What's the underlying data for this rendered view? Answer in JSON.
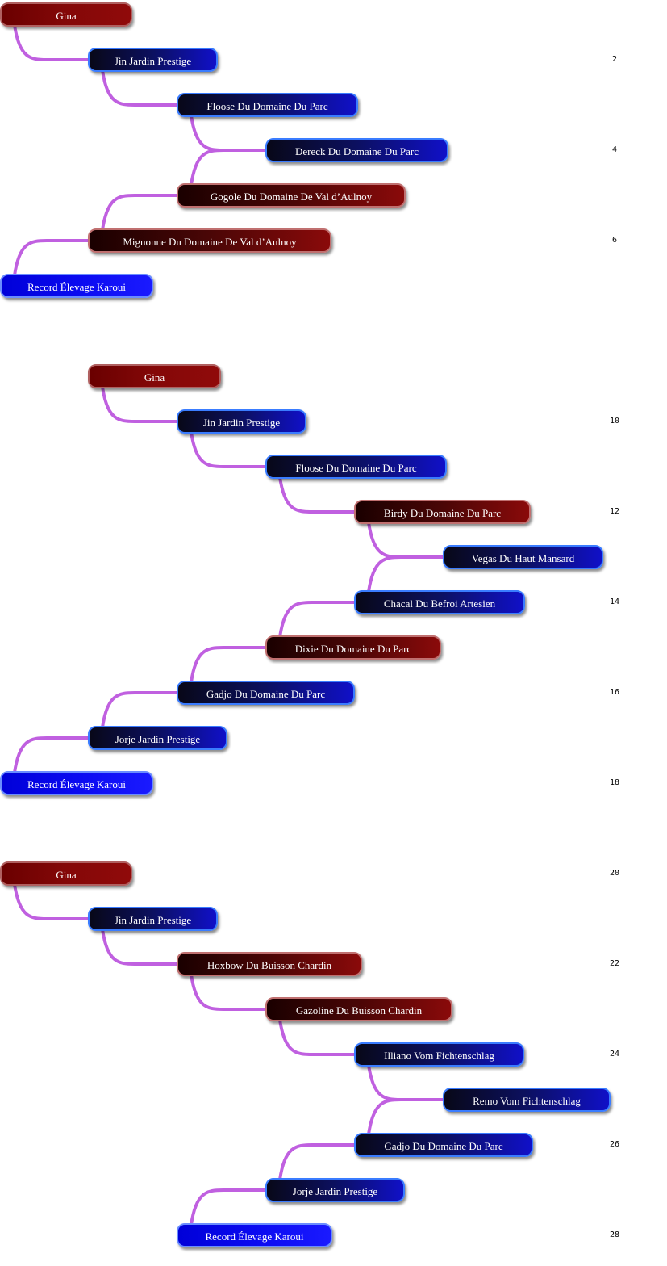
{
  "colors": {
    "connector": "#c060e0"
  },
  "chains": [
    {
      "nodes": [
        {
          "label": "Gina",
          "style": "red-bright"
        },
        {
          "label": "Jin Jardin Prestige",
          "style": "blue-dark"
        },
        {
          "label": "Floose Du Domaine Du Parc",
          "style": "blue-dark"
        },
        {
          "label": "Dereck Du Domaine Du Parc",
          "style": "blue-dark"
        },
        {
          "label": "Gogole Du Domaine De Val d’Aulnoy",
          "style": "red-dark"
        },
        {
          "label": "Mignonne Du Domaine De Val d’Aulnoy",
          "style": "red-dark"
        },
        {
          "label": "Record Élevage Karoui",
          "style": "blue-bright"
        }
      ]
    },
    {
      "nodes": [
        {
          "label": "Gina",
          "style": "red-bright"
        },
        {
          "label": "Jin Jardin Prestige",
          "style": "blue-dark"
        },
        {
          "label": "Floose Du Domaine Du Parc",
          "style": "blue-dark"
        },
        {
          "label": "Birdy Du Domaine Du Parc",
          "style": "red-dark"
        },
        {
          "label": "Vegas Du Haut Mansard",
          "style": "blue-dark"
        },
        {
          "label": "Chacal Du Befroi Artesien",
          "style": "blue-dark"
        },
        {
          "label": "Dixie Du Domaine Du Parc",
          "style": "red-dark"
        },
        {
          "label": "Gadjo Du Domaine Du Parc",
          "style": "blue-dark"
        },
        {
          "label": "Jorje Jardin Prestige",
          "style": "blue-dark"
        },
        {
          "label": "Record Élevage Karoui",
          "style": "blue-bright"
        }
      ]
    },
    {
      "nodes": [
        {
          "label": "Gina",
          "style": "red-bright"
        },
        {
          "label": "Jin Jardin Prestige",
          "style": "blue-dark"
        },
        {
          "label": "Hoxbow Du Buisson Chardin",
          "style": "red-dark"
        },
        {
          "label": "Gazoline Du Buisson Chardin",
          "style": "red-dark"
        },
        {
          "label": "Illiano Vom Fichtenschlag",
          "style": "blue-dark"
        },
        {
          "label": "Remo Vom Fichtenschlag",
          "style": "blue-dark"
        },
        {
          "label": "Gadjo Du Domaine Du Parc",
          "style": "blue-dark"
        },
        {
          "label": "Jorje Jardin Prestige",
          "style": "blue-dark"
        },
        {
          "label": "Record Élevage Karoui",
          "style": "blue-bright"
        }
      ]
    }
  ],
  "page_numbers": [
    "2",
    "4",
    "6",
    "10",
    "12",
    "14",
    "16",
    "18",
    "20",
    "22",
    "24",
    "26",
    "28"
  ]
}
